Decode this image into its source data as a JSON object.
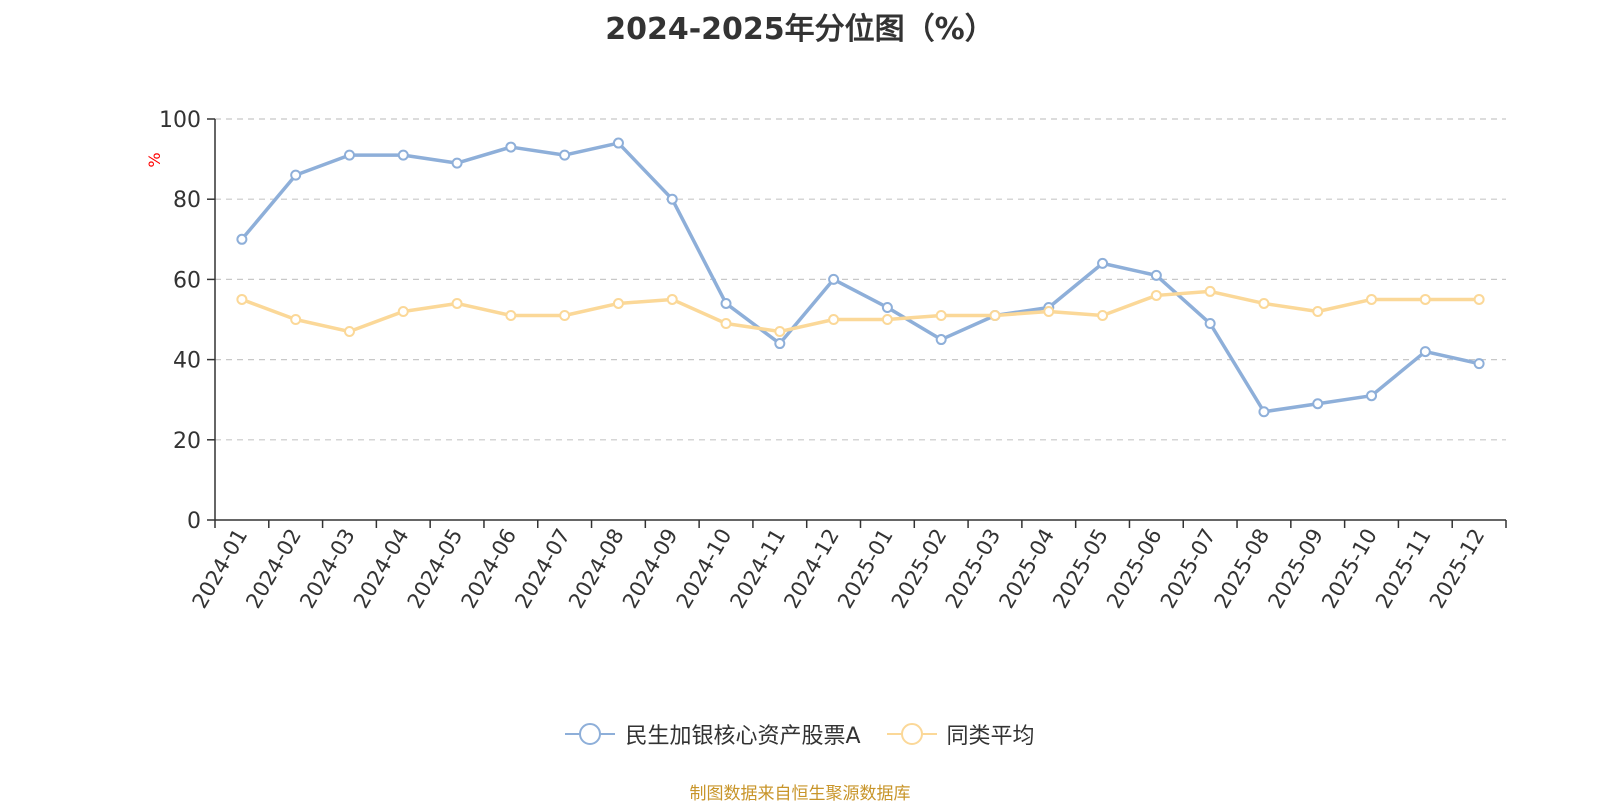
{
  "chart_data": {
    "type": "line",
    "title": "2024-2025年分位图（%）",
    "ylabel": "%",
    "ylim": [
      0,
      100
    ],
    "yticks": [
      "0",
      "20",
      "40",
      "60",
      "80",
      "100"
    ],
    "grid": true,
    "legend_placement": "bottom",
    "categories": [
      "2024-01",
      "2024-02",
      "2024-03",
      "2024-04",
      "2024-05",
      "2024-06",
      "2024-07",
      "2024-08",
      "2024-09",
      "2024-10",
      "2024-11",
      "2024-12",
      "2025-01",
      "2025-02",
      "2025-03",
      "2025-04",
      "2025-05",
      "2025-06",
      "2025-07",
      "2025-08",
      "2025-09",
      "2025-10",
      "2025-11",
      "2025-12"
    ],
    "series": [
      {
        "name": "民生加银核心资产股票A",
        "color": "#8eafd9",
        "values": [
          70,
          86,
          91,
          91,
          89,
          93,
          91,
          94,
          80,
          54,
          44,
          60,
          53,
          45,
          51,
          53,
          64,
          61,
          49,
          27,
          29,
          31,
          42,
          39
        ]
      },
      {
        "name": "同类平均",
        "color": "#fbd898",
        "values": [
          55,
          50,
          47,
          52,
          54,
          51,
          51,
          54,
          55,
          49,
          47,
          50,
          50,
          51,
          51,
          52,
          51,
          56,
          57,
          54,
          52,
          55,
          55,
          55
        ]
      }
    ]
  },
  "source_note": "制图数据来自恒生聚源数据库"
}
